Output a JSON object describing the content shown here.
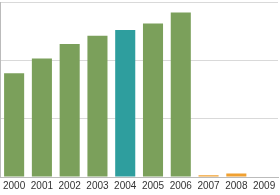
{
  "chart_data": {
    "type": "bar",
    "categories": [
      "2000",
      "2001",
      "2002",
      "2003",
      "2004",
      "2005",
      "2006",
      "2007",
      "2008",
      "2009"
    ],
    "values": [
      1.78,
      2.03,
      2.28,
      2.42,
      2.52,
      2.63,
      2.82,
      0.03,
      0.06,
      0
    ],
    "colors": [
      "#7ba05b",
      "#7ba05b",
      "#7ba05b",
      "#7ba05b",
      "#2e9e9e",
      "#7ba05b",
      "#7ba05b",
      "#f0a030",
      "#f0a030",
      "#f0a030"
    ],
    "ylim": [
      0,
      3
    ],
    "yticks": [
      0,
      1,
      2,
      3
    ],
    "grid": true,
    "tick_labels": "x"
  }
}
